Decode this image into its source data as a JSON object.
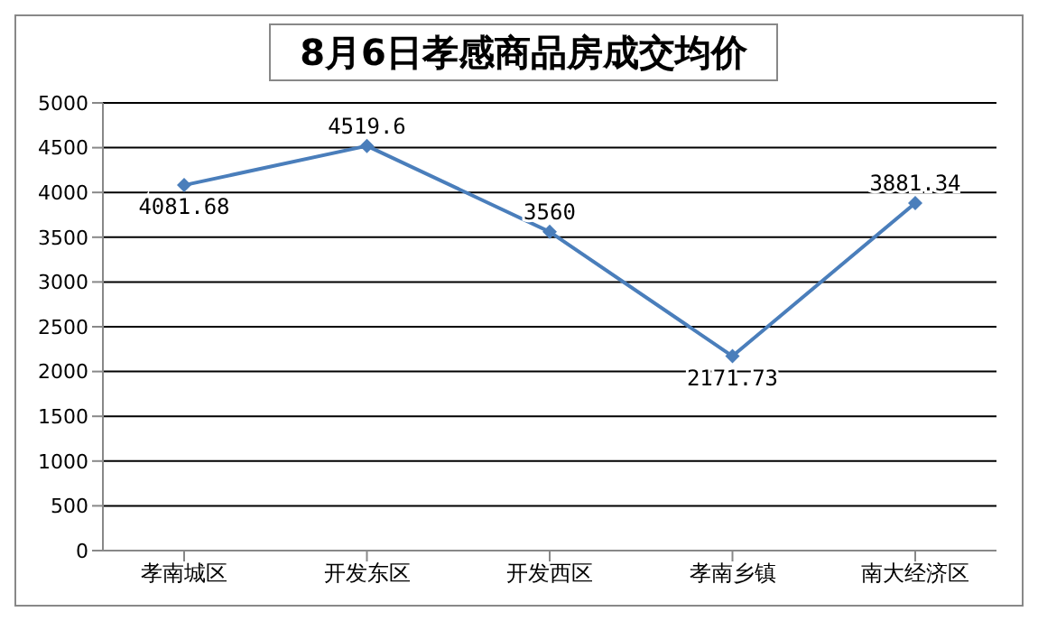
{
  "chart_data": {
    "type": "line",
    "title": "8月6日孝感商品房成交均价",
    "categories": [
      "孝南城区",
      "开发东区",
      "开发西区",
      "孝南乡镇",
      "南大经济区"
    ],
    "series": [
      {
        "color": "#4a7ebb",
        "values": [
          4081.68,
          4519.6,
          3560,
          2171.73,
          3881.34
        ]
      }
    ],
    "ylim": [
      0,
      5000
    ],
    "yticks": [
      0,
      500,
      1000,
      1500,
      2000,
      2500,
      3000,
      3500,
      4000,
      4500,
      5000
    ],
    "grid": "y",
    "marker": "diamond",
    "line_style": "solid",
    "data_labels": true
  }
}
